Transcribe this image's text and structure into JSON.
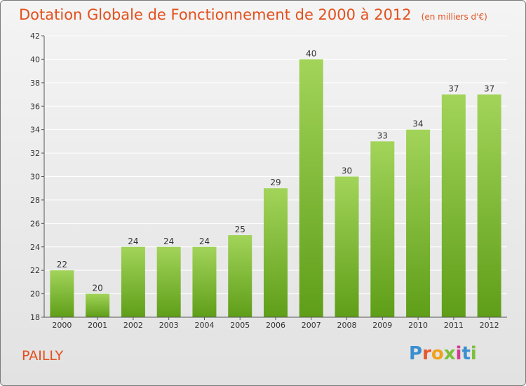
{
  "header": {
    "title": "Dotation Globale de Fonctionnement de 2000 à 2012",
    "subtitle": "(en milliers d'€)"
  },
  "footer": {
    "place": "PAILLY",
    "logo": {
      "text": "Proxiti",
      "letter_colors": [
        "#3a8fd0",
        "#e8572a",
        "#f0a11a",
        "#7bbf3a",
        "#d43c8f",
        "#3a8fd0",
        "#7bbf3a"
      ]
    }
  },
  "chart_data": {
    "type": "bar",
    "title": "Dotation Globale de Fonctionnement de 2000 à 2012",
    "subtitle": "(en milliers d'€)",
    "categories": [
      "2000",
      "2001",
      "2002",
      "2003",
      "2004",
      "2005",
      "2006",
      "2007",
      "2008",
      "2009",
      "2010",
      "2011",
      "2012"
    ],
    "values": [
      22,
      20,
      24,
      24,
      24,
      25,
      29,
      40,
      30,
      33,
      34,
      37,
      37
    ],
    "xlabel": "",
    "ylabel": "",
    "ylim": [
      18,
      42
    ],
    "yticks": [
      18,
      20,
      22,
      24,
      26,
      28,
      30,
      32,
      34,
      36,
      38,
      40,
      42
    ],
    "grid": true,
    "legend": "none",
    "colors": {
      "bar_top": "#a2d45a",
      "bar_bottom": "#5f9e18",
      "grid": "#ffffff",
      "axis": "#555555"
    }
  }
}
